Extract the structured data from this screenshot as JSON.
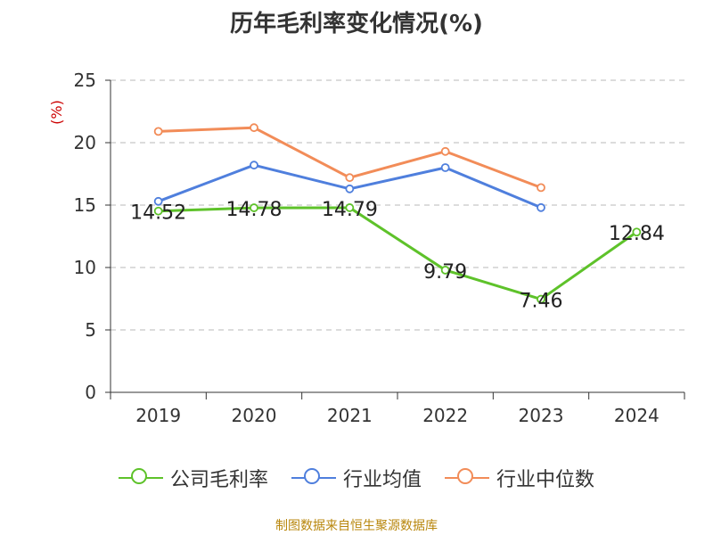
{
  "chart_data": {
    "type": "line",
    "title": "历年毛利率变化情况(%)",
    "ylabel": "(%)",
    "xlabel": "",
    "categories": [
      "2019",
      "2020",
      "2021",
      "2022",
      "2023",
      "2024"
    ],
    "ylim": [
      0,
      25
    ],
    "yticks": [
      0,
      5,
      10,
      15,
      20,
      25
    ],
    "grid": true,
    "legend_position": "bottom",
    "series": [
      {
        "name": "公司毛利率",
        "color": "#5ec22a",
        "values": [
          14.52,
          14.78,
          14.79,
          9.79,
          7.46,
          12.84
        ],
        "labels": [
          "14.52",
          "14.78",
          "14.79",
          "9.79",
          "7.46",
          "12.84"
        ]
      },
      {
        "name": "行业均值",
        "color": "#4f7fdd",
        "values": [
          15.3,
          18.2,
          16.3,
          18.0,
          14.8,
          null
        ]
      },
      {
        "name": "行业中位数",
        "color": "#f28c58",
        "values": [
          20.9,
          21.2,
          17.2,
          19.3,
          16.4,
          null
        ]
      }
    ]
  },
  "footer": "制图数据来自恒生聚源数据库"
}
